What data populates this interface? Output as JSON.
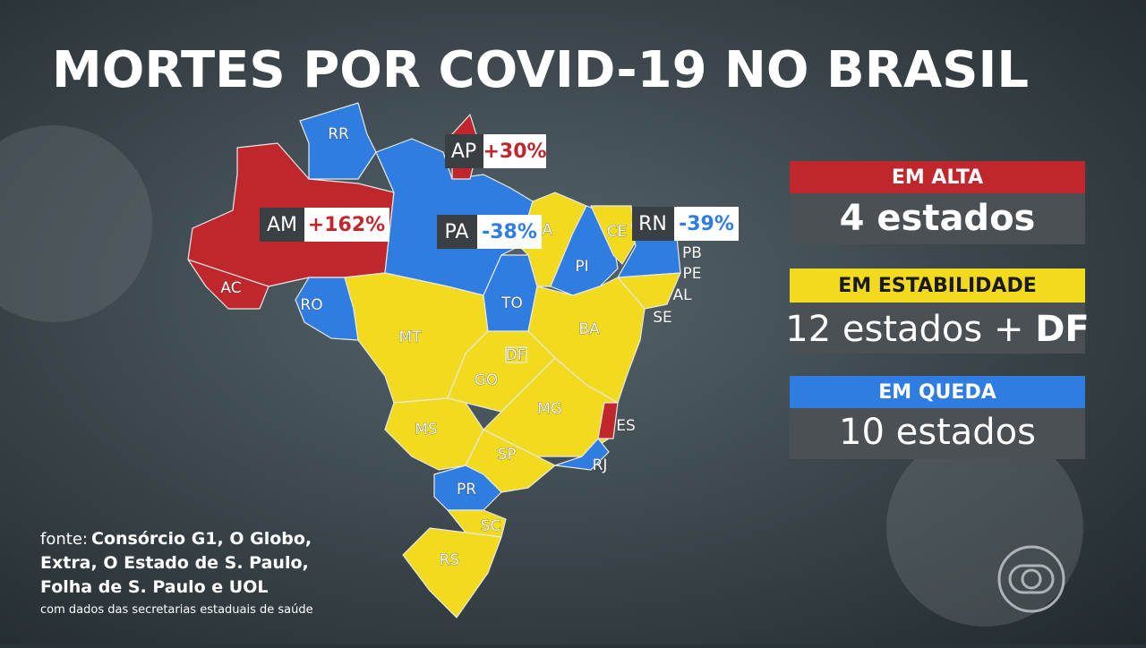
{
  "header": {
    "title": "MORTES POR COVID-19 NO BRASIL"
  },
  "map": {
    "states": [
      "RR",
      "AC",
      "RO",
      "MT",
      "TO",
      "MA",
      "PI",
      "CE",
      "PB",
      "PE",
      "AL",
      "SE",
      "BA",
      "DF",
      "GO",
      "MG",
      "MS",
      "ES",
      "SP",
      "RJ",
      "PR",
      "SC",
      "RS"
    ]
  },
  "callouts": [
    {
      "state": "AM",
      "change": "+162%"
    },
    {
      "state": "AP",
      "change": "+30%"
    },
    {
      "state": "PA",
      "change": "-38%"
    },
    {
      "state": "RN",
      "change": "-39%"
    }
  ],
  "legend": [
    {
      "label": "EM ALTA",
      "count": "4 estados"
    },
    {
      "label": "EM ESTABILIDADE",
      "count": "12 estados +",
      "extra": "DF"
    },
    {
      "label": "EM QUEDA",
      "count": "10 estados"
    }
  ],
  "source": {
    "prefix": "fonte:",
    "lines": [
      "Consórcio G1, O Globo,",
      "Extra, O Estado de S. Paulo,",
      "Folha de S. Paulo e UOL"
    ],
    "note": "com dados das secretarias estaduais de saúde"
  }
}
